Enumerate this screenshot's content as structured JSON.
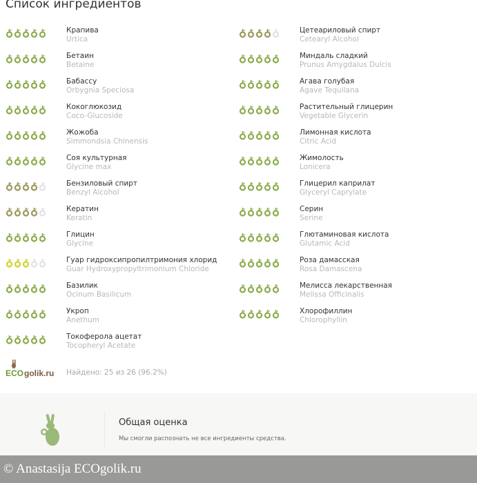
{
  "title": "Список ингредиентов",
  "colors": {
    "rating_5": "#8aab4a",
    "rating_4": "#9c9658",
    "rating_3": "#d2d22c",
    "empty": "#e2e2e2"
  },
  "icon": "leaf-drop-icon",
  "ingredients_left": [
    {
      "ru": "Крапива",
      "lat": "Urtica",
      "rating": 5
    },
    {
      "ru": "Бетаин",
      "lat": "Betaine",
      "rating": 5
    },
    {
      "ru": "Бабассу",
      "lat": "Orbygnia Speciosa",
      "rating": 5
    },
    {
      "ru": "Кокоглюкозид",
      "lat": "Coco-Glucoside",
      "rating": 5
    },
    {
      "ru": "Жожоба",
      "lat": "Simmondsia Chinensis",
      "rating": 5
    },
    {
      "ru": "Соя культурная",
      "lat": "Glycine max",
      "rating": 5
    },
    {
      "ru": "Бензиловый спирт",
      "lat": "Benzyl Alcohol",
      "rating": 4
    },
    {
      "ru": "Кератин",
      "lat": "Keratin",
      "rating": 4
    },
    {
      "ru": "Глицин",
      "lat": "Glycine",
      "rating": 5
    },
    {
      "ru": "Гуар гидроксипропилтримония хлорид",
      "lat": "Guar Hydroxypropyltrimonium Chloride",
      "rating": 3
    },
    {
      "ru": "Базилик",
      "lat": "Ocinum Basilicum",
      "rating": 5
    },
    {
      "ru": "Укроп",
      "lat": "Anethum",
      "rating": 5
    },
    {
      "ru": "Токоферола ацетат",
      "lat": "Tocopheryl Acetate",
      "rating": 5
    }
  ],
  "ingredients_right": [
    {
      "ru": "Цетеариловый спирт",
      "lat": "Cetearyl Alcohol",
      "rating": 4
    },
    {
      "ru": "Миндаль сладкий",
      "lat": "Prunus Amygdalus Dulcis",
      "rating": 5
    },
    {
      "ru": "Агава голубая",
      "lat": "Agave Tequilana",
      "rating": 5
    },
    {
      "ru": "Растительный глицерин",
      "lat": "Vegetable Glycerin",
      "rating": 5
    },
    {
      "ru": "Лимонная кислота",
      "lat": "Citric Acid",
      "rating": 5
    },
    {
      "ru": "Жимолость",
      "lat": "Lonicera",
      "rating": 5
    },
    {
      "ru": "Глицерил каприлат",
      "lat": "Glyceryl Caprylate",
      "rating": 5
    },
    {
      "ru": "Серин",
      "lat": "Serine",
      "rating": 5
    },
    {
      "ru": "Глютаминовая кислота",
      "lat": "Glutamic Acid",
      "rating": 5
    },
    {
      "ru": "Роза дамасская",
      "lat": "Rosa Damascena",
      "rating": 5
    },
    {
      "ru": "Мелисса лекарственная",
      "lat": "Melissa Officinalis",
      "rating": 5
    },
    {
      "ru": "Хлорофиллин",
      "lat": "Chlorophyllin",
      "rating": 5
    }
  ],
  "logo_text": "ECOgolik.ru",
  "found": "Найдено: 25 из 26 (96.2%)",
  "overall": {
    "title": "Общая оценка",
    "text": "Мы смогли распознать не все ингредиенты средства."
  },
  "watermark": "© Anastasija  ECOgolik.ru"
}
